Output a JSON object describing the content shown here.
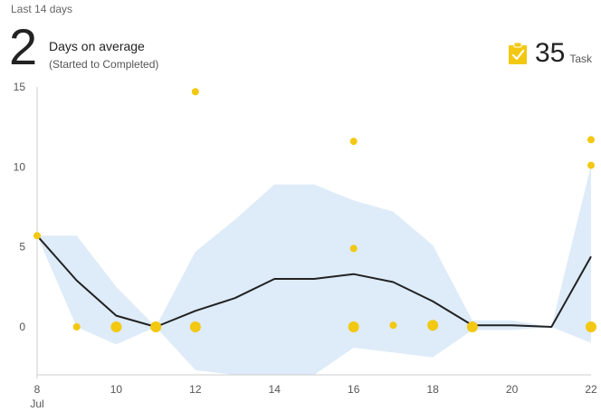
{
  "header": {
    "subtitle": "Last 14 days",
    "average_value": "2",
    "average_label": "Days on average",
    "average_sublabel": "(Started to Completed)",
    "count_value": "35",
    "count_unit": "Task",
    "count_icon": "clipboard-check-icon"
  },
  "colors": {
    "point": "#f2c811",
    "band": "#deebf8",
    "line": "#222222",
    "axis": "#cccccc"
  },
  "chart_data": {
    "type": "scatter",
    "x_axis": {
      "type": "date",
      "min": 8,
      "max": 22,
      "ticks": [
        8,
        10,
        12,
        14,
        16,
        18,
        20,
        22
      ],
      "month_label": "Jul"
    },
    "y_axis": {
      "min": -3,
      "max": 15,
      "ticks": [
        0,
        5,
        10,
        15
      ]
    },
    "points": [
      {
        "x": 8,
        "y": 5.7,
        "size": "small"
      },
      {
        "x": 9,
        "y": 0,
        "size": "small"
      },
      {
        "x": 10,
        "y": 0,
        "size": "medium"
      },
      {
        "x": 11,
        "y": 0,
        "size": "medium"
      },
      {
        "x": 12,
        "y": 14.7,
        "size": "small"
      },
      {
        "x": 12,
        "y": 0,
        "size": "medium"
      },
      {
        "x": 16,
        "y": 11.6,
        "size": "small"
      },
      {
        "x": 16,
        "y": 4.9,
        "size": "small"
      },
      {
        "x": 16,
        "y": 0,
        "size": "medium"
      },
      {
        "x": 17,
        "y": 0.1,
        "size": "small"
      },
      {
        "x": 18,
        "y": 0.1,
        "size": "medium"
      },
      {
        "x": 19,
        "y": 0,
        "size": "medium"
      },
      {
        "x": 22,
        "y": 11.7,
        "size": "small"
      },
      {
        "x": 22,
        "y": 10.1,
        "size": "small"
      },
      {
        "x": 22,
        "y": 0,
        "size": "medium"
      }
    ],
    "average_line": [
      {
        "x": 8,
        "y": 5.7
      },
      {
        "x": 9,
        "y": 2.9
      },
      {
        "x": 10,
        "y": 0.7
      },
      {
        "x": 11,
        "y": 0
      },
      {
        "x": 12,
        "y": 1
      },
      {
        "x": 13,
        "y": 1.8
      },
      {
        "x": 14,
        "y": 3
      },
      {
        "x": 15,
        "y": 3
      },
      {
        "x": 16,
        "y": 3.3
      },
      {
        "x": 17,
        "y": 2.8
      },
      {
        "x": 18,
        "y": 1.6
      },
      {
        "x": 19,
        "y": 0.1
      },
      {
        "x": 20,
        "y": 0.1
      },
      {
        "x": 21,
        "y": 0
      },
      {
        "x": 22,
        "y": 4.4
      }
    ],
    "band_upper": [
      {
        "x": 8,
        "y": 5.7
      },
      {
        "x": 9,
        "y": 5.7
      },
      {
        "x": 10,
        "y": 2.5
      },
      {
        "x": 11,
        "y": 0
      },
      {
        "x": 12,
        "y": 4.7
      },
      {
        "x": 13,
        "y": 6.7
      },
      {
        "x": 14,
        "y": 8.9
      },
      {
        "x": 15,
        "y": 8.9
      },
      {
        "x": 16,
        "y": 7.9
      },
      {
        "x": 17,
        "y": 7.2
      },
      {
        "x": 18,
        "y": 5.1
      },
      {
        "x": 19,
        "y": 0.4
      },
      {
        "x": 20,
        "y": 0.4
      },
      {
        "x": 21,
        "y": 0
      },
      {
        "x": 22,
        "y": 10.1
      }
    ],
    "band_lower": [
      {
        "x": 8,
        "y": 5.7
      },
      {
        "x": 9,
        "y": 0
      },
      {
        "x": 10,
        "y": -1.1
      },
      {
        "x": 11,
        "y": 0
      },
      {
        "x": 12,
        "y": -2.7
      },
      {
        "x": 13,
        "y": -3
      },
      {
        "x": 14,
        "y": -3
      },
      {
        "x": 15,
        "y": -3
      },
      {
        "x": 16,
        "y": -1.3
      },
      {
        "x": 17,
        "y": -1.6
      },
      {
        "x": 18,
        "y": -1.9
      },
      {
        "x": 19,
        "y": -0.2
      },
      {
        "x": 20,
        "y": -0.2
      },
      {
        "x": 21,
        "y": 0
      },
      {
        "x": 22,
        "y": -1
      }
    ],
    "grid": false,
    "legend": "none"
  }
}
